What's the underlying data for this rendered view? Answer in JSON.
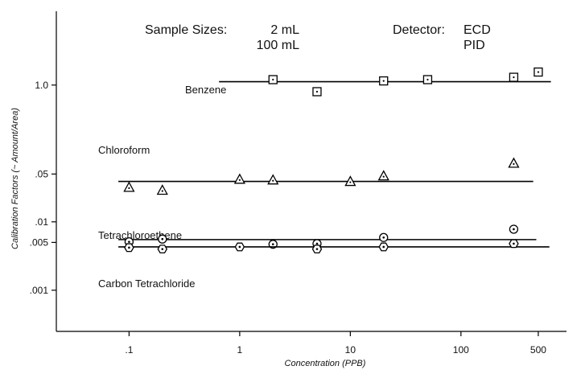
{
  "chart_data": {
    "type": "scatter",
    "xlabel": "Concentration (PPB)",
    "ylabel": "Calibration Factors (~ Amount/Area)",
    "x_scale": "log",
    "y_scale": "log",
    "xlim": [
      0.022,
      900
    ],
    "ylim": [
      0.00025,
      12
    ],
    "x_ticks": [
      {
        "value": 0.1,
        "label": ".1"
      },
      {
        "value": 1,
        "label": "1"
      },
      {
        "value": 10,
        "label": "10"
      },
      {
        "value": 100,
        "label": "100"
      },
      {
        "value": 500,
        "label": "500"
      }
    ],
    "y_ticks": [
      {
        "value": 1.0,
        "label": "1.0"
      },
      {
        "value": 0.05,
        "label": ".05"
      },
      {
        "value": 0.01,
        "label": ".01"
      },
      {
        "value": 0.005,
        "label": ".005"
      },
      {
        "value": 0.001,
        "label": ".001"
      }
    ],
    "grid": false,
    "header": {
      "sample_sizes_label": "Sample Sizes:",
      "sample_sizes": [
        "2 mL",
        "100 mL"
      ],
      "detector_label": "Detector:",
      "detectors": [
        "ECD",
        "PID"
      ]
    },
    "series": [
      {
        "name": "Benzene",
        "marker": "square",
        "x": [
          2,
          5,
          20,
          50,
          300,
          500
        ],
        "y": [
          1.2,
          0.8,
          1.15,
          1.2,
          1.3,
          1.55
        ],
        "fit_line": {
          "x": [
            0.65,
            650
          ],
          "y": 1.12
        }
      },
      {
        "name": "Chloroform",
        "marker": "triangle",
        "x": [
          0.1,
          0.2,
          1,
          2,
          10,
          20,
          300
        ],
        "y": [
          0.032,
          0.029,
          0.042,
          0.041,
          0.039,
          0.047,
          0.072
        ],
        "fit_line": {
          "x": [
            0.08,
            450
          ],
          "y": 0.039
        }
      },
      {
        "name": "Tetrachloroethene",
        "marker": "circle",
        "x": [
          0.1,
          0.2,
          2,
          5,
          20,
          300
        ],
        "y": [
          0.0051,
          0.0056,
          0.0047,
          0.0048,
          0.0059,
          0.0078
        ],
        "fit_line": {
          "x": [
            0.08,
            480
          ],
          "y": 0.0055
        }
      },
      {
        "name": "Carbon Tetrachloride",
        "marker": "hexagon",
        "x": [
          0.1,
          0.2,
          1,
          5,
          20,
          300
        ],
        "y": [
          0.0042,
          0.004,
          0.0043,
          0.004,
          0.0043,
          0.0048
        ],
        "fit_line": {
          "x": [
            0.08,
            630
          ],
          "y": 0.0043
        }
      }
    ]
  }
}
